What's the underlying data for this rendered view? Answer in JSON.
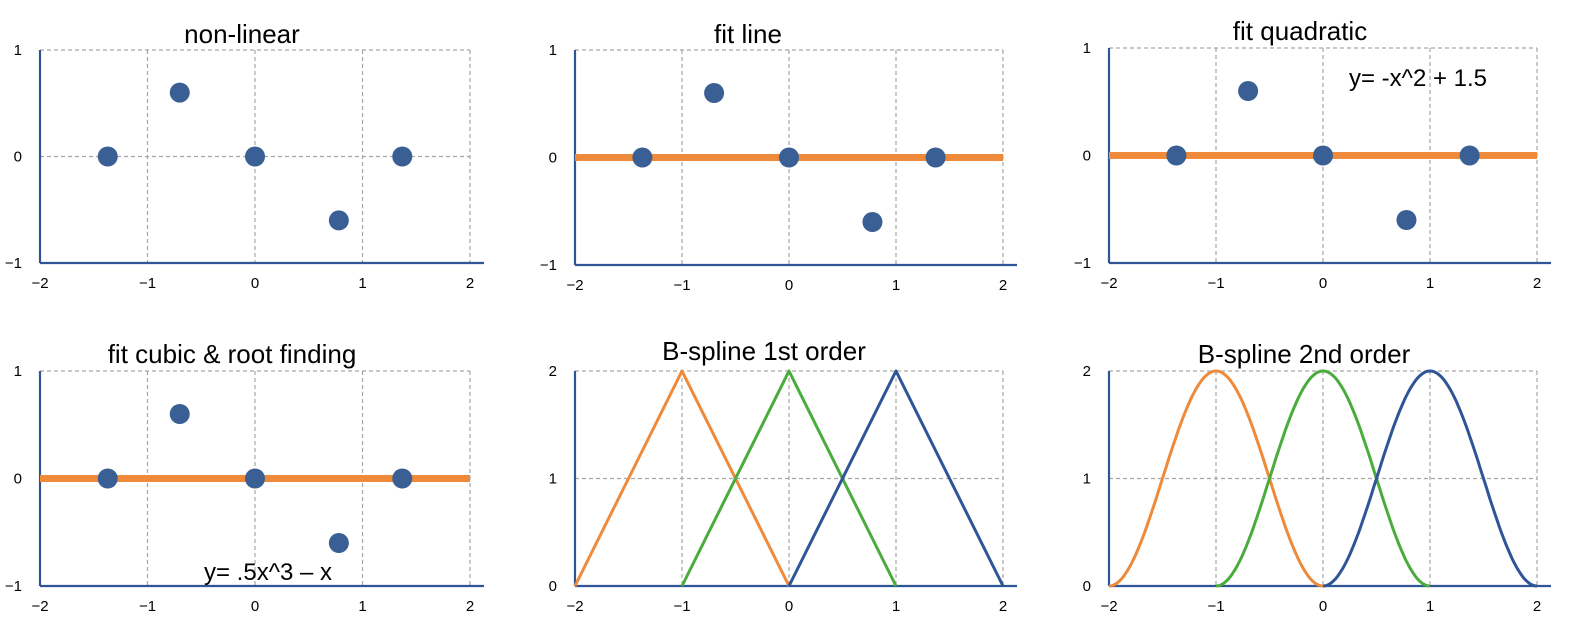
{
  "colors": {
    "points": "#3a5f94",
    "fit": "#ef8a3a",
    "orange": "#ef8a3a",
    "green": "#4bac3e",
    "blue": "#2f5597",
    "grid": "#a6a6a6",
    "axis": "#2f5597"
  },
  "chart_data": [
    {
      "type": "scatter",
      "title": "non-linear",
      "annotation": "",
      "xlim": [
        -2,
        2
      ],
      "ylim": [
        -1,
        1
      ],
      "xticks": [
        -2,
        -1,
        0,
        1,
        2
      ],
      "yticks": [
        -1,
        0,
        1
      ],
      "xtick_labels": [
        "−2",
        "−1",
        "0",
        "1",
        "2"
      ],
      "ytick_labels": [
        "−1",
        "0",
        "1"
      ],
      "grid": true,
      "points": {
        "x": [
          -1.37,
          -0.7,
          0,
          0.78,
          1.37
        ],
        "y": [
          0,
          0.6,
          0,
          -0.6,
          0
        ]
      },
      "curves": []
    },
    {
      "type": "scatter",
      "title": "fit line",
      "annotation": "",
      "xlim": [
        -2,
        2
      ],
      "ylim": [
        -1,
        1
      ],
      "xticks": [
        -2,
        -1,
        0,
        1,
        2
      ],
      "yticks": [
        -1,
        0,
        1
      ],
      "xtick_labels": [
        "−2",
        "−1",
        "0",
        "1",
        "2"
      ],
      "ytick_labels": [
        "−1",
        "0",
        "1"
      ],
      "grid": true,
      "points": {
        "x": [
          -1.37,
          -0.7,
          0,
          0.78,
          1.37
        ],
        "y": [
          0,
          0.6,
          0,
          -0.6,
          0
        ]
      },
      "curves": [
        {
          "kind": "line",
          "color": "#ef8a3a",
          "width": 7,
          "x": [
            -2,
            2
          ],
          "y": [
            0,
            0
          ]
        }
      ]
    },
    {
      "type": "scatter",
      "title": "fit quadratic",
      "annotation": "y= -x^2 + 1.5",
      "xlim": [
        -2,
        2
      ],
      "ylim": [
        -1,
        1
      ],
      "xticks": [
        -2,
        -1,
        0,
        1,
        2
      ],
      "yticks": [
        -1,
        0,
        1
      ],
      "xtick_labels": [
        "−2",
        "−1",
        "0",
        "1",
        "2"
      ],
      "ytick_labels": [
        "−1",
        "0",
        "1"
      ],
      "grid": true,
      "points": {
        "x": [
          -1.37,
          -0.7,
          0,
          0.78,
          1.37
        ],
        "y": [
          0,
          0.6,
          0,
          -0.6,
          0
        ]
      },
      "curves": [
        {
          "kind": "line",
          "color": "#ef8a3a",
          "width": 7,
          "x": [
            -2,
            2
          ],
          "y": [
            0,
            0
          ]
        }
      ]
    },
    {
      "type": "scatter",
      "title": "fit cubic & root finding",
      "annotation": "y= .5x^3 – x",
      "xlim": [
        -2,
        2
      ],
      "ylim": [
        -1,
        1
      ],
      "xticks": [
        -2,
        -1,
        0,
        1,
        2
      ],
      "yticks": [
        -1,
        0,
        1
      ],
      "xtick_labels": [
        "−2",
        "−1",
        "0",
        "1",
        "2"
      ],
      "ytick_labels": [
        "−1",
        "0",
        "1"
      ],
      "grid": true,
      "points": {
        "x": [
          -1.37,
          -0.7,
          0,
          0.78,
          1.37
        ],
        "y": [
          0,
          0.6,
          0,
          -0.6,
          0
        ]
      },
      "curves": [
        {
          "kind": "line",
          "color": "#ef8a3a",
          "width": 7,
          "x": [
            -2,
            2
          ],
          "y": [
            0,
            0
          ]
        }
      ]
    },
    {
      "type": "line",
      "title": "B-spline 1st order",
      "annotation": "",
      "xlim": [
        -2,
        2
      ],
      "ylim": [
        0,
        2
      ],
      "xticks": [
        -2,
        -1,
        0,
        1,
        2
      ],
      "yticks": [
        0,
        1,
        2
      ],
      "xtick_labels": [
        "−2",
        "−1",
        "0",
        "1",
        "2"
      ],
      "ytick_labels": [
        "0",
        "1",
        "2"
      ],
      "grid": true,
      "points": {
        "x": [],
        "y": []
      },
      "curves": [
        {
          "kind": "line",
          "color": "#ef8a3a",
          "width": 3,
          "x": [
            -2,
            -1,
            0
          ],
          "y": [
            0,
            2,
            0
          ]
        },
        {
          "kind": "line",
          "color": "#4bac3e",
          "width": 3,
          "x": [
            -1,
            0,
            1
          ],
          "y": [
            0,
            2,
            0
          ]
        },
        {
          "kind": "line",
          "color": "#2f5597",
          "width": 3,
          "x": [
            0,
            1,
            2
          ],
          "y": [
            0,
            2,
            0
          ]
        }
      ]
    },
    {
      "type": "line",
      "title": "B-spline 2nd order",
      "annotation": "",
      "xlim": [
        -2,
        2
      ],
      "ylim": [
        0,
        2
      ],
      "xticks": [
        -2,
        -1,
        0,
        1,
        2
      ],
      "yticks": [
        0,
        1,
        2
      ],
      "xtick_labels": [
        "−2",
        "−1",
        "0",
        "1",
        "2"
      ],
      "ytick_labels": [
        "0",
        "1",
        "2"
      ],
      "grid": true,
      "points": {
        "x": [],
        "y": []
      },
      "curves": [
        {
          "kind": "bump",
          "color": "#ef8a3a",
          "width": 3,
          "center": -1,
          "peak": 2,
          "half_width": 1
        },
        {
          "kind": "bump",
          "color": "#4bac3e",
          "width": 3,
          "center": 0,
          "peak": 2,
          "half_width": 1
        },
        {
          "kind": "bump",
          "color": "#2f5597",
          "width": 3,
          "center": 1,
          "peak": 2,
          "half_width": 1
        }
      ]
    }
  ]
}
